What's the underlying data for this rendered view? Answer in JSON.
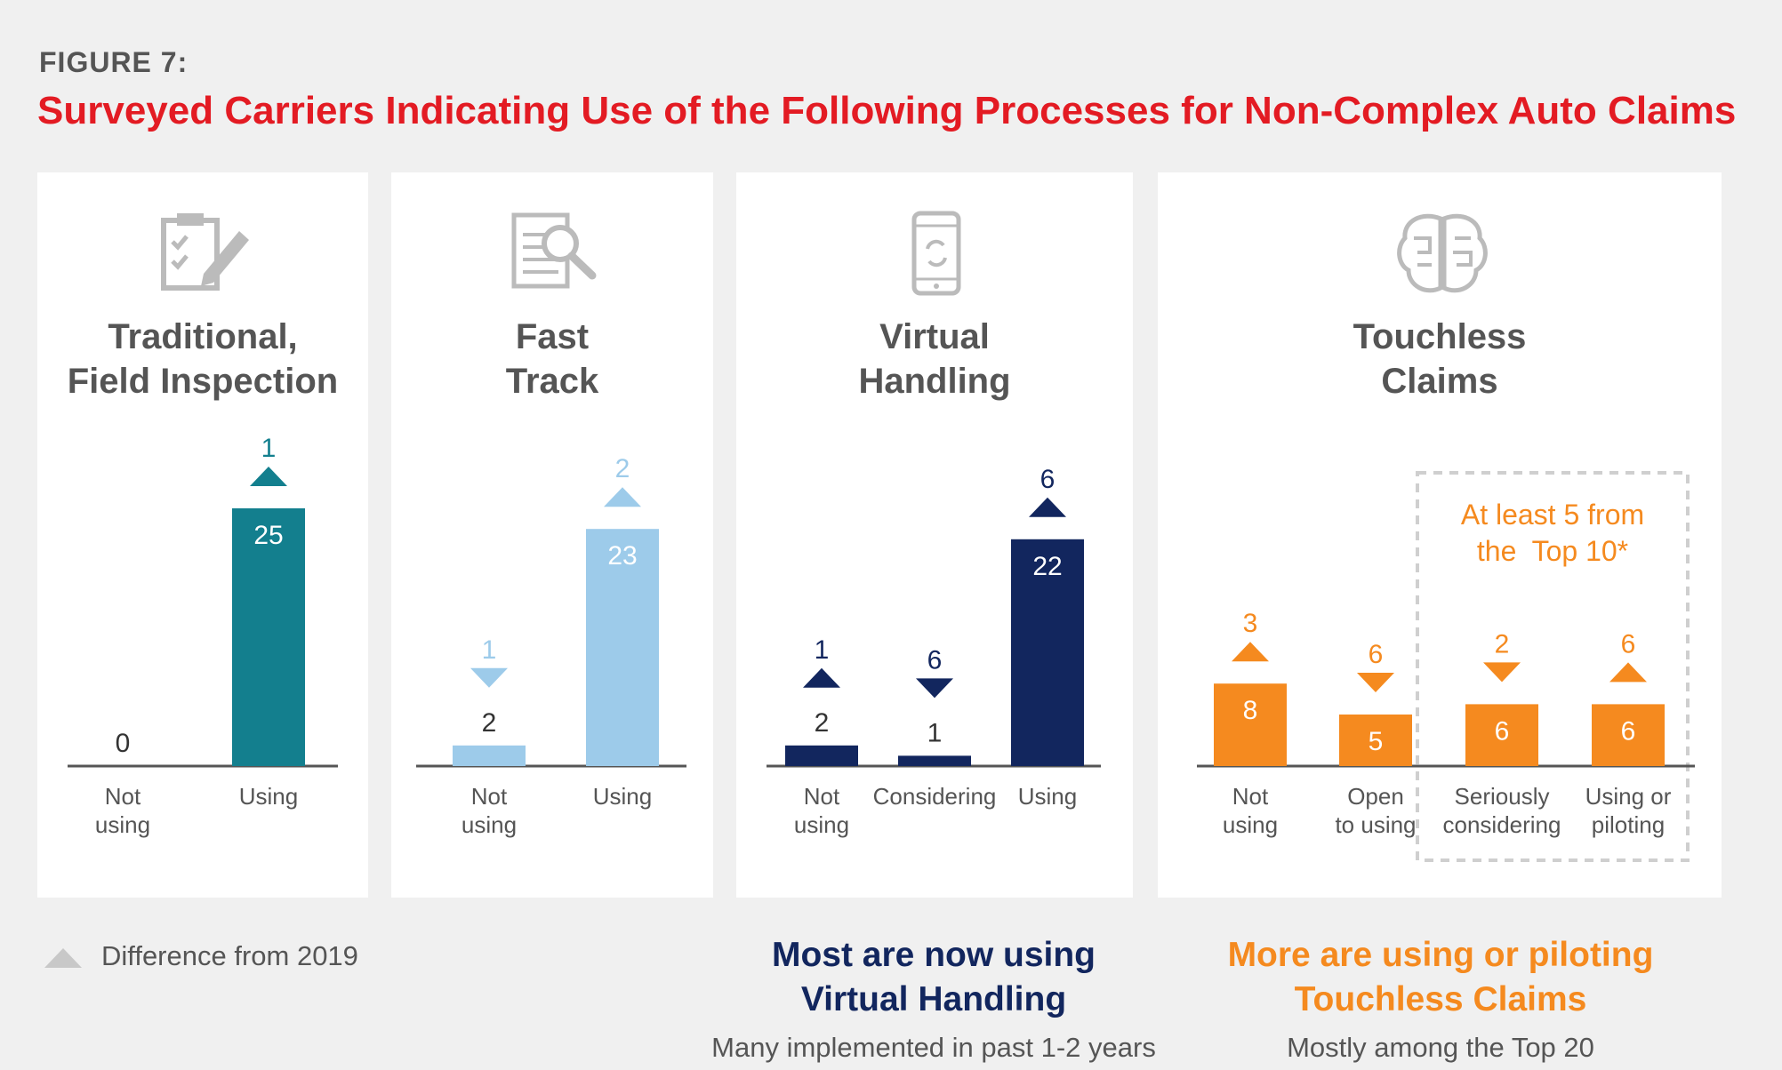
{
  "figure_label": "FIGURE 7:",
  "title": "Surveyed Carriers Indicating Use of the Following Processes for Non-Complex Auto Claims",
  "colors": {
    "title": "#e31b23",
    "teal": "#137f8e",
    "light_blue": "#9dcbea",
    "navy": "#12265e",
    "orange": "#f58a1f",
    "gray": "#555555"
  },
  "legend": {
    "label": "Difference from 2019",
    "icon": "up-triangle-icon"
  },
  "panels": [
    {
      "title_line1": "Traditional,",
      "title_line2": "Field Inspection",
      "icon": "clipboard-checklist-icon"
    },
    {
      "title_line1": "Fast",
      "title_line2": "Track",
      "icon": "document-search-icon"
    },
    {
      "title_line1": "Virtual",
      "title_line2": "Handling",
      "icon": "smartphone-sync-icon"
    },
    {
      "title_line1": "Touchless",
      "title_line2": "Claims",
      "icon": "ai-brain-icon",
      "callout": [
        "At least 5 from",
        "the  Top 10*"
      ]
    }
  ],
  "notes": [
    {
      "headline_line1": "Most are now using",
      "headline_line2": "Virtual Handling",
      "sub": "Many implemented in past 1-2 years"
    },
    {
      "headline_line1": "More are using or piloting",
      "headline_line2": "Touchless Claims",
      "sub": "Mostly among the Top 20"
    }
  ],
  "chart_data": [
    {
      "type": "bar",
      "title": "Traditional, Field Inspection",
      "categories": [
        [
          "Not",
          "using"
        ],
        [
          "Using"
        ]
      ],
      "values": [
        0,
        25
      ],
      "change_from_2019": [
        null,
        1
      ],
      "change_direction": [
        null,
        "up"
      ],
      "color": "#137f8e"
    },
    {
      "type": "bar",
      "title": "Fast Track",
      "categories": [
        [
          "Not",
          "using"
        ],
        [
          "Using"
        ]
      ],
      "values": [
        2,
        23
      ],
      "change_from_2019": [
        1,
        2
      ],
      "change_direction": [
        "down",
        "up"
      ],
      "color": "#9dcbea"
    },
    {
      "type": "bar",
      "title": "Virtual Handling",
      "categories": [
        [
          "Not",
          "using"
        ],
        [
          "Considering"
        ],
        [
          "Using"
        ]
      ],
      "values": [
        2,
        1,
        22
      ],
      "change_from_2019": [
        1,
        6,
        6
      ],
      "change_direction": [
        "up",
        "down",
        "up"
      ],
      "color": "#12265e"
    },
    {
      "type": "bar",
      "title": "Touchless Claims",
      "categories": [
        [
          "Not",
          "using"
        ],
        [
          "Open",
          "to using"
        ],
        [
          "Seriously",
          "considering"
        ],
        [
          "Using or",
          "piloting"
        ]
      ],
      "values": [
        8,
        5,
        6,
        6
      ],
      "change_from_2019": [
        3,
        6,
        2,
        6
      ],
      "change_direction": [
        "up",
        "down",
        "down",
        "up"
      ],
      "color": "#f58a1f"
    }
  ]
}
